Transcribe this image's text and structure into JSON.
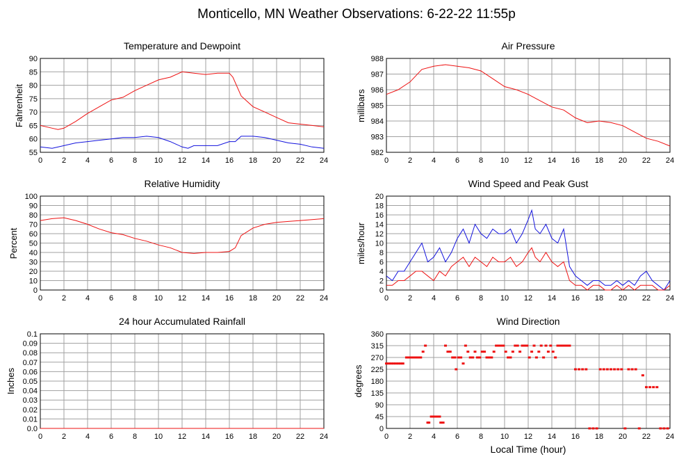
{
  "page": {
    "title": "Monticello, MN Weather Observations: 6-22-22 11:55p",
    "x_axis_label": "Local Time (hour)"
  },
  "colors": {
    "red": "#ee1111",
    "blue": "#1111dd",
    "grid": "#a0a0a0"
  },
  "chart_data": [
    {
      "type": "line",
      "title": "Temperature and Dewpoint",
      "ylabel": "Fahrenheit",
      "xlim": [
        0,
        24
      ],
      "ylim": [
        55,
        90
      ],
      "x_ticks": [
        0,
        2,
        4,
        6,
        8,
        10,
        12,
        14,
        16,
        18,
        20,
        22,
        24
      ],
      "y_ticks": [
        55,
        60,
        65,
        70,
        75,
        80,
        85,
        90
      ],
      "grid": true,
      "series": [
        {
          "color": "red",
          "x": [
            0,
            1,
            1.5,
            2,
            3,
            4,
            5,
            6,
            7,
            8,
            9,
            10,
            10.5,
            11,
            12,
            13,
            14,
            15,
            16,
            16.3,
            17,
            18,
            19,
            20,
            21,
            22,
            23,
            24
          ],
          "y": [
            65,
            64,
            63.5,
            64,
            66.5,
            69.5,
            72,
            74.5,
            75.5,
            78,
            80,
            82,
            82.5,
            83,
            85,
            84.5,
            84,
            84.5,
            84.5,
            83,
            76,
            72,
            70,
            68,
            66,
            65.5,
            65,
            64.5
          ]
        },
        {
          "color": "blue",
          "x": [
            0,
            1,
            2,
            3,
            4,
            5,
            6,
            7,
            8,
            9,
            10,
            11,
            11.5,
            12,
            12.5,
            13,
            14,
            15,
            16,
            16.5,
            17,
            18,
            19,
            20,
            21,
            22,
            23,
            24
          ],
          "y": [
            57,
            56.5,
            57.5,
            58.5,
            59,
            59.5,
            60,
            60.5,
            60.5,
            61,
            60.5,
            59,
            58,
            57,
            56.5,
            57.5,
            57.5,
            57.5,
            59,
            59,
            61,
            61,
            60.5,
            59.5,
            58.5,
            58,
            57,
            56.5
          ]
        }
      ]
    },
    {
      "type": "line",
      "title": "Air Pressure",
      "ylabel": "millibars",
      "xlim": [
        0,
        24
      ],
      "ylim": [
        982,
        988
      ],
      "x_ticks": [
        0,
        2,
        4,
        6,
        8,
        10,
        12,
        14,
        16,
        18,
        20,
        22,
        24
      ],
      "y_ticks": [
        982,
        983,
        984,
        985,
        986,
        987,
        988
      ],
      "grid": true,
      "series": [
        {
          "color": "red",
          "x": [
            0,
            1,
            2,
            3,
            4,
            5,
            6,
            7,
            8,
            9,
            10,
            11,
            12,
            13,
            14,
            15,
            16,
            17,
            18,
            19,
            20,
            21,
            22,
            23,
            24
          ],
          "y": [
            985.7,
            986,
            986.5,
            987.3,
            987.5,
            987.6,
            987.5,
            987.4,
            987.2,
            986.7,
            986.2,
            986,
            985.7,
            985.3,
            984.9,
            984.7,
            984.2,
            983.9,
            984,
            983.9,
            983.7,
            983.3,
            982.9,
            982.7,
            982.4
          ]
        }
      ]
    },
    {
      "type": "line",
      "title": "Relative Humidity",
      "ylabel": "Percent",
      "xlim": [
        0,
        24
      ],
      "ylim": [
        0,
        100
      ],
      "x_ticks": [
        0,
        2,
        4,
        6,
        8,
        10,
        12,
        14,
        16,
        18,
        20,
        22,
        24
      ],
      "y_ticks": [
        0,
        10,
        20,
        30,
        40,
        50,
        60,
        70,
        80,
        90,
        100
      ],
      "grid": true,
      "series": [
        {
          "color": "red",
          "x": [
            0,
            1,
            2,
            3,
            4,
            5,
            6,
            7,
            8,
            9,
            10,
            11,
            12,
            13,
            14,
            15,
            16,
            16.5,
            17,
            18,
            19,
            20,
            21,
            22,
            23,
            24
          ],
          "y": [
            74,
            76,
            77,
            74,
            70,
            65,
            61,
            59,
            55,
            52,
            48,
            45,
            40,
            39,
            40,
            40,
            41,
            45,
            58,
            66,
            70,
            72,
            73,
            74,
            75,
            76
          ]
        }
      ]
    },
    {
      "type": "line",
      "title": "Wind Speed and Peak Gust",
      "ylabel": "miles/hour",
      "xlim": [
        0,
        24
      ],
      "ylim": [
        0,
        20
      ],
      "x_ticks": [
        0,
        2,
        4,
        6,
        8,
        10,
        12,
        14,
        16,
        18,
        20,
        22,
        24
      ],
      "y_ticks": [
        0,
        2,
        4,
        6,
        8,
        10,
        12,
        14,
        16,
        18,
        20
      ],
      "grid": true,
      "series": [
        {
          "color": "blue",
          "x": [
            0,
            0.5,
            1,
            1.5,
            2,
            2.5,
            3,
            3.5,
            4,
            4.5,
            5,
            5.5,
            6,
            6.5,
            7,
            7.5,
            8,
            8.5,
            9,
            9.5,
            10,
            10.5,
            11,
            11.5,
            12,
            12.3,
            12.6,
            13,
            13.5,
            14,
            14.5,
            15,
            15.5,
            16,
            16.5,
            17,
            17.5,
            18,
            18.5,
            19,
            19.5,
            20,
            20.5,
            21,
            21.5,
            22,
            22.5,
            23,
            23.5,
            24
          ],
          "y": [
            3,
            2,
            4,
            4,
            6,
            8,
            10,
            6,
            7,
            9,
            6,
            8,
            11,
            13,
            10,
            14,
            12,
            11,
            13,
            12,
            12,
            13,
            10,
            12,
            15,
            17,
            13,
            12,
            14,
            11,
            10,
            13,
            5,
            3,
            2,
            1,
            2,
            2,
            1,
            1,
            2,
            1,
            2,
            1,
            3,
            4,
            2,
            1,
            0,
            2
          ]
        },
        {
          "color": "red",
          "x": [
            0,
            0.5,
            1,
            1.5,
            2,
            2.5,
            3,
            3.5,
            4,
            4.5,
            5,
            5.5,
            6,
            6.5,
            7,
            7.5,
            8,
            8.5,
            9,
            9.5,
            10,
            10.5,
            11,
            11.5,
            12,
            12.3,
            12.6,
            13,
            13.5,
            14,
            14.5,
            15,
            15.5,
            16,
            16.5,
            17,
            17.5,
            18,
            18.5,
            19,
            19.5,
            20,
            20.5,
            21,
            21.5,
            22,
            22.5,
            23,
            23.5,
            24
          ],
          "y": [
            1,
            1,
            2,
            2,
            3,
            4,
            4,
            3,
            2,
            4,
            3,
            5,
            6,
            7,
            5,
            7,
            6,
            5,
            7,
            6,
            6,
            7,
            5,
            6,
            8,
            9,
            7,
            6,
            8,
            6,
            5,
            6,
            2,
            1,
            1,
            0,
            1,
            1,
            0,
            0,
            1,
            0,
            1,
            0,
            1,
            1,
            1,
            0,
            0,
            1
          ]
        }
      ]
    },
    {
      "type": "line",
      "title": "24 hour Accumulated Rainfall",
      "ylabel": "Inches",
      "xlim": [
        0,
        24
      ],
      "ylim": [
        0,
        0.1
      ],
      "x_ticks": [
        0,
        2,
        4,
        6,
        8,
        10,
        12,
        14,
        16,
        18,
        20,
        22,
        24
      ],
      "y_ticks": [
        0.0,
        0.01,
        0.02,
        0.03,
        0.04,
        0.05,
        0.06,
        0.07,
        0.08,
        0.09,
        0.1
      ],
      "y_tick_labels": [
        "0.0",
        "0.01",
        "0.02",
        "0.03",
        "0.04",
        "0.05",
        "0.06",
        "0.07",
        "0.08",
        "0.09",
        "0.1"
      ],
      "grid": true,
      "series": [
        {
          "color": "red",
          "x": [
            0,
            24
          ],
          "y": [
            0,
            0
          ]
        }
      ]
    },
    {
      "type": "scatter",
      "title": "Wind Direction",
      "ylabel": "degrees",
      "xlim": [
        0,
        24
      ],
      "ylim": [
        0,
        360
      ],
      "x_ticks": [
        0,
        2,
        4,
        6,
        8,
        10,
        12,
        14,
        16,
        18,
        20,
        22,
        24
      ],
      "y_ticks": [
        0,
        45,
        90,
        135,
        180,
        225,
        270,
        315,
        360
      ],
      "grid": true,
      "series": [
        {
          "color": "red",
          "x": [
            0,
            0.2,
            0.4,
            0.6,
            0.8,
            1,
            1.2,
            1.4,
            1.7,
            1.9,
            2.1,
            2.3,
            2.5,
            2.7,
            2.9,
            3.1,
            3.3,
            3.5,
            3.6,
            3.8,
            4,
            4.1,
            4.3,
            4.5,
            4.6,
            4.8,
            5,
            5.2,
            5.4,
            5.6,
            5.8,
            5.9,
            6.1,
            6.3,
            6.5,
            6.7,
            6.9,
            7.1,
            7.3,
            7.5,
            7.7,
            7.9,
            8.1,
            8.3,
            8.5,
            8.7,
            8.9,
            9.1,
            9.3,
            9.5,
            9.7,
            9.9,
            10.1,
            10.3,
            10.5,
            10.7,
            10.9,
            11.1,
            11.3,
            11.5,
            11.7,
            11.9,
            12.1,
            12.3,
            12.5,
            12.7,
            12.9,
            13.1,
            13.3,
            13.5,
            13.7,
            13.9,
            14.1,
            14.3,
            14.5,
            14.7,
            14.9,
            15.1,
            15.3,
            15.5,
            16,
            16.3,
            16.6,
            16.9,
            17.2,
            17.5,
            17.8,
            18.1,
            18.4,
            18.7,
            19,
            19.3,
            19.6,
            19.9,
            20.2,
            20.5,
            20.8,
            21.1,
            21.4,
            21.7,
            22,
            22.3,
            22.6,
            22.9,
            23.2,
            23.5,
            23.8
          ],
          "y": [
            247,
            247,
            247,
            247,
            247,
            247,
            247,
            247,
            270,
            270,
            270,
            270,
            270,
            270,
            270,
            292,
            315,
            22,
            22,
            45,
            45,
            45,
            45,
            45,
            22,
            22,
            315,
            292,
            292,
            270,
            270,
            225,
            270,
            270,
            247,
            315,
            292,
            270,
            270,
            292,
            270,
            270,
            292,
            292,
            270,
            270,
            270,
            292,
            315,
            315,
            315,
            315,
            292,
            270,
            270,
            292,
            315,
            315,
            292,
            315,
            315,
            315,
            270,
            292,
            315,
            270,
            292,
            315,
            270,
            315,
            292,
            315,
            292,
            270,
            315,
            315,
            315,
            315,
            315,
            315,
            225,
            225,
            225,
            225,
            0,
            0,
            0,
            225,
            225,
            225,
            225,
            225,
            225,
            225,
            0,
            225,
            225,
            225,
            0,
            202,
            157,
            157,
            157,
            157,
            0,
            0,
            0
          ]
        }
      ]
    }
  ]
}
